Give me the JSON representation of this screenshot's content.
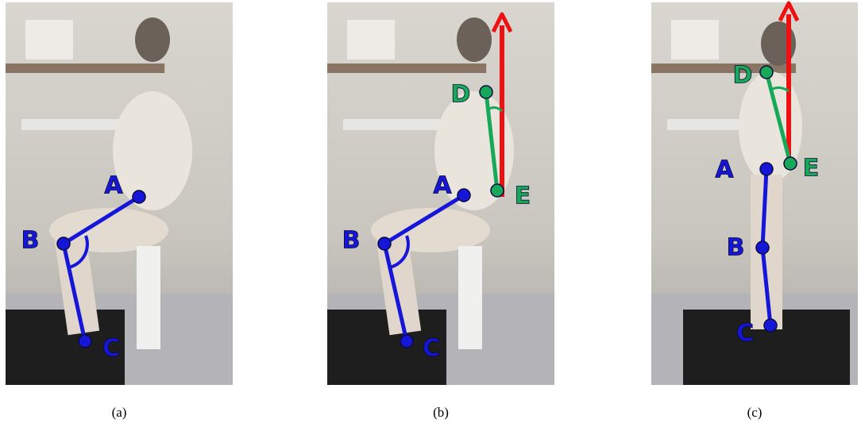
{
  "panels": [
    {
      "caption": "(a)",
      "labels": [
        "A",
        "B",
        "C"
      ]
    },
    {
      "caption": "(b)",
      "labels": [
        "A",
        "B",
        "C",
        "D",
        "E"
      ]
    },
    {
      "caption": "(c)",
      "labels": [
        "A",
        "B",
        "C",
        "D",
        "E"
      ]
    }
  ]
}
